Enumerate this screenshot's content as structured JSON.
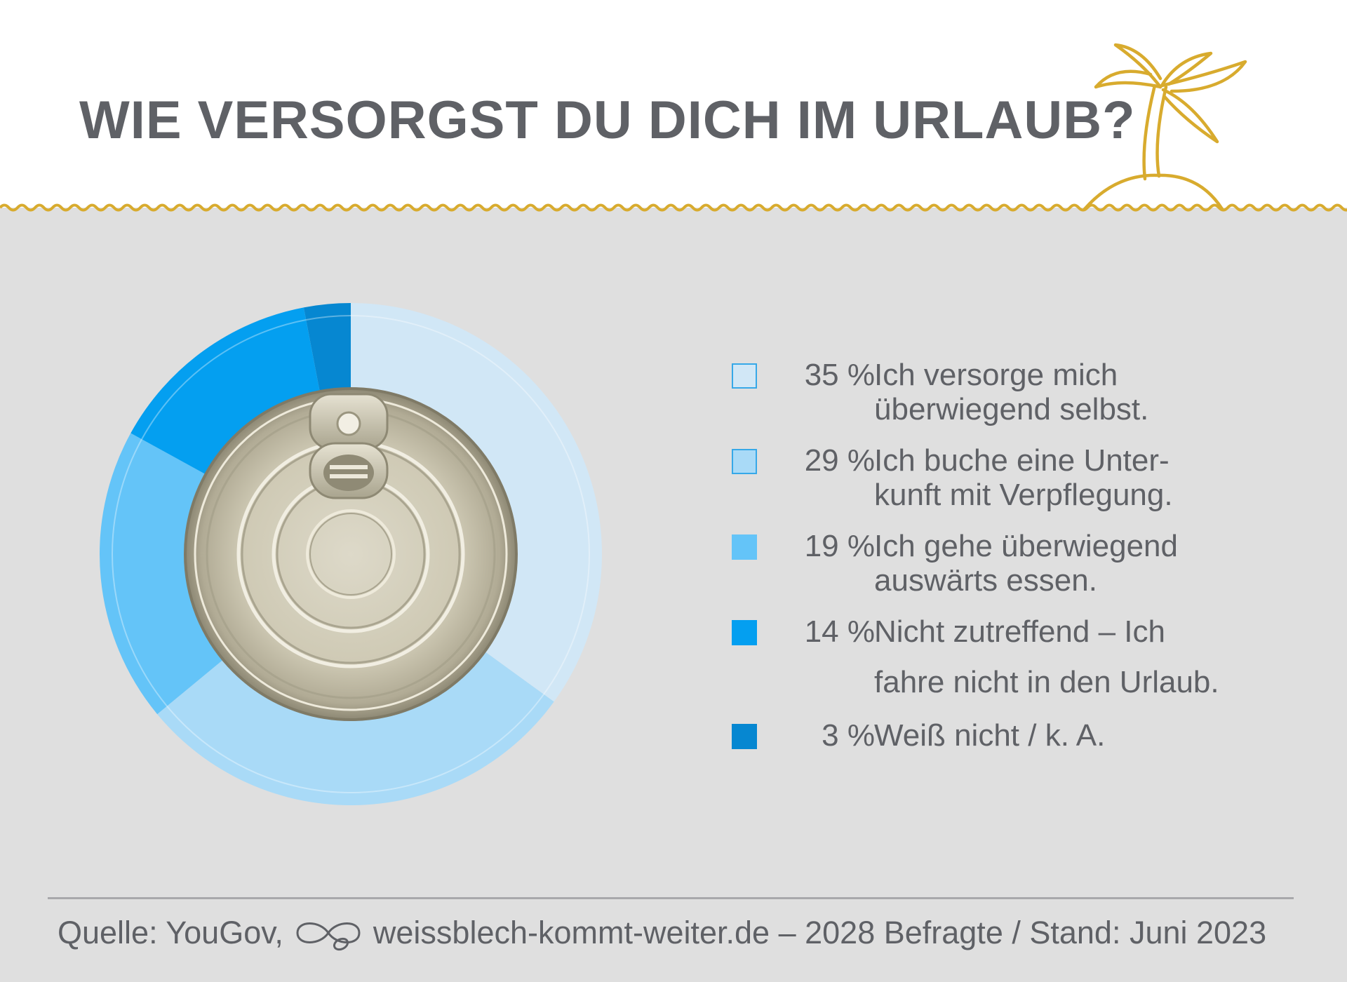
{
  "title": "WIE VERSORGST DU DICH IM URLAUB?",
  "colors": {
    "accent_gold": "#d8ab2e",
    "text_gray": "#5f6166",
    "background": "#dfdfdf"
  },
  "icons": [
    "palm-island-icon",
    "tin-can-lid-icon",
    "infinity-tin-logo-icon"
  ],
  "chart_data": {
    "type": "pie",
    "style": "donut",
    "categories": [
      "Ich versorge mich überwiegend selbst.",
      "Ich buche eine Unterkunft mit Verpflegung.",
      "Ich gehe überwiegend auswärts essen.",
      "Nicht zutreffend – Ich fahre nicht in den Urlaub.",
      "Weiß nicht / k. A."
    ],
    "values": [
      35,
      29,
      19,
      14,
      3
    ],
    "unit": "%",
    "colors": [
      "#d1e7f6",
      "#a9daf7",
      "#64c4f8",
      "#049ff0",
      "#0687d1"
    ],
    "legend_position": "right"
  },
  "legend": [
    {
      "pct": "35 %",
      "lines": [
        "Ich versorge mich",
        "überwiegend selbst."
      ]
    },
    {
      "pct": "29 %",
      "lines": [
        "Ich buche eine Unter-",
        "kunft mit Verpflegung."
      ]
    },
    {
      "pct": "19 %",
      "lines": [
        "Ich gehe überwiegend",
        "auswärts essen."
      ]
    },
    {
      "pct": "14 %",
      "lines": [
        "Nicht zutreffend – Ich",
        "fahre nicht in den Urlaub."
      ]
    },
    {
      "pct": "3 %",
      "lines": [
        "Weiß nicht / k. A."
      ]
    }
  ],
  "footer": {
    "source_prefix": "Quelle: YouGov,",
    "source_suffix": "weissblech-kommt-weiter.de – 2028 Befragte / Stand: Juni 2023"
  }
}
